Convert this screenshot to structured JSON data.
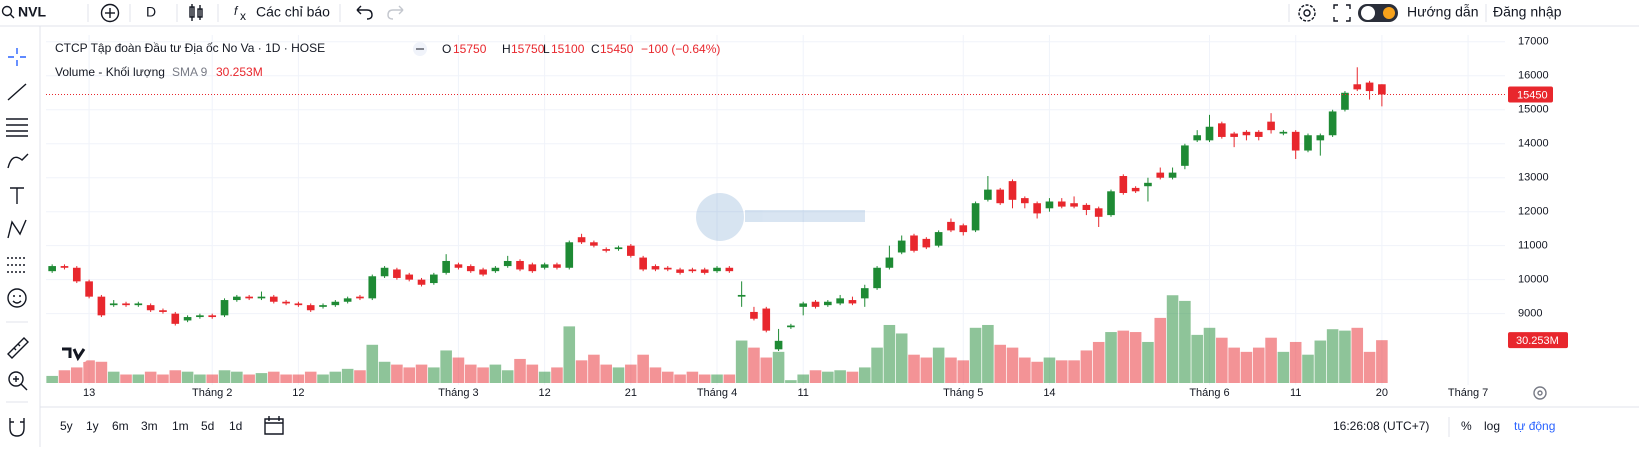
{
  "toolbar": {
    "symbol": "NVL",
    "interval": "D",
    "indicators": "Các chỉ báo",
    "guide": "Hướng dẫn",
    "login": "Đăng nhập"
  },
  "chart_data": {
    "type": "candlestick",
    "title": "CTCP Tập đoàn Đầu tư Địa ốc No Va · 1D · HOSE",
    "legend": {
      "open_label": "O",
      "high_label": "H",
      "low_label": "L",
      "close_label": "C",
      "change": "−100 (−0.64%)"
    },
    "volume_legend": {
      "name": "Volume - Khối lượng",
      "indicator": "SMA 9"
    },
    "categories": [
      null,
      null,
      null,
      "13",
      null,
      null,
      null,
      null,
      null,
      null,
      null,
      null,
      null,
      "Tháng 2",
      null,
      null,
      null,
      null,
      null,
      null,
      "12",
      null,
      null,
      null,
      null,
      null,
      null,
      null,
      null,
      null,
      null,
      null,
      null,
      "Tháng 3",
      null,
      null,
      null,
      null,
      null,
      null,
      "12",
      null,
      null,
      null,
      null,
      null,
      null,
      "21",
      null,
      null,
      null,
      null,
      null,
      null,
      "Tháng 4",
      null,
      null,
      null,
      null,
      null,
      null,
      "11",
      null,
      null,
      null,
      null,
      null,
      null,
      null,
      null,
      null,
      null,
      null,
      null,
      "Tháng 5",
      null,
      null,
      null,
      null,
      null,
      null,
      "14",
      null,
      null,
      null,
      null,
      null,
      null,
      null,
      null,
      null,
      null,
      null,
      null,
      "Tháng 6",
      null,
      null,
      null,
      null,
      null,
      null,
      "11",
      null,
      null,
      null,
      null,
      null,
      null,
      "20"
    ],
    "xlim": [
      -0.5,
      118
    ],
    "xticks_after": [
      {
        "value": 115,
        "label": "Tháng 7"
      }
    ],
    "open": [
      10250,
      10400,
      10350,
      9950,
      9500,
      9250,
      9300,
      9250,
      9250,
      9100,
      9000,
      8800,
      8900,
      8950,
      8950,
      9400,
      9500,
      9450,
      9500,
      9350,
      9300,
      9250,
      9200,
      9250,
      9350,
      9500,
      9450,
      10100,
      10300,
      10150,
      10000,
      9900,
      10200,
      10450,
      10400,
      10300,
      10250,
      10400,
      10550,
      10450,
      10350,
      10450,
      10350,
      11250,
      11100,
      10900,
      10900,
      11000,
      10650,
      10400,
      10350,
      10300,
      10300,
      10300,
      10250,
      10350,
      9500,
      9050,
      9150,
      7950,
      8600,
      9200,
      9350,
      9250,
      9300,
      9400,
      9450,
      9750,
      10350,
      10800,
      11300,
      11200,
      11000,
      11700,
      11600,
      11450,
      12350,
      12650,
      12900,
      12400,
      12250,
      12100,
      12300,
      12250,
      12200,
      12100,
      11900,
      13050,
      12700,
      12750,
      13150,
      13000,
      13350,
      14100,
      14100,
      14600,
      14300,
      14350,
      14350,
      14650,
      14300,
      14350,
      13800,
      14100,
      14250,
      15000,
      15750,
      15800,
      15750
    ],
    "high": [
      10450,
      10450,
      10400,
      10000,
      9550,
      9400,
      9350,
      9350,
      9300,
      9150,
      9050,
      8950,
      9000,
      9000,
      9450,
      9550,
      9550,
      9650,
      9550,
      9400,
      9350,
      9300,
      9300,
      9400,
      9500,
      9550,
      10150,
      10400,
      10350,
      10200,
      10050,
      10200,
      10750,
      10500,
      10450,
      10350,
      10400,
      10700,
      10600,
      10500,
      10500,
      10500,
      11150,
      11350,
      11150,
      10950,
      11000,
      11050,
      10700,
      10450,
      10400,
      10350,
      10350,
      10350,
      10400,
      10400,
      9950,
      9200,
      9200,
      8550,
      8700,
      9350,
      9400,
      9400,
      9550,
      9500,
      9850,
      10400,
      11000,
      11300,
      11350,
      11250,
      11450,
      11800,
      11650,
      12300,
      13050,
      12700,
      12950,
      12450,
      12300,
      12400,
      12400,
      12450,
      12250,
      12150,
      12650,
      13100,
      12750,
      13000,
      13300,
      13300,
      14000,
      14400,
      14850,
      14650,
      14350,
      14400,
      14400,
      14900,
      14400,
      14400,
      14300,
      14300,
      15000,
      15550,
      16250,
      15850,
      15750
    ],
    "low": [
      10200,
      10300,
      9900,
      9450,
      8900,
      9200,
      9200,
      9200,
      9050,
      9000,
      8650,
      8750,
      8850,
      8850,
      8900,
      9350,
      9400,
      9400,
      9300,
      9250,
      9200,
      9050,
      9150,
      9200,
      9300,
      9400,
      9400,
      10050,
      10000,
      9950,
      9800,
      9850,
      10150,
      10300,
      10200,
      10100,
      10200,
      10350,
      10250,
      10200,
      10300,
      10300,
      10300,
      11050,
      10950,
      10800,
      10850,
      10650,
      10250,
      10250,
      10250,
      10150,
      10200,
      10150,
      10200,
      10200,
      9200,
      8800,
      8450,
      7900,
      8550,
      8950,
      9150,
      9200,
      9250,
      9250,
      9200,
      9700,
      10300,
      10750,
      10800,
      10900,
      10950,
      11400,
      11300,
      11400,
      12300,
      12200,
      12100,
      12100,
      11800,
      12000,
      12100,
      12100,
      11900,
      11550,
      11850,
      12500,
      12550,
      12300,
      12950,
      12950,
      13250,
      14050,
      14050,
      14150,
      13900,
      14100,
      14100,
      14300,
      14250,
      13550,
      13750,
      13650,
      14200,
      14950,
      15550,
      15300,
      15100
    ],
    "close": [
      10400,
      10350,
      9950,
      9500,
      8950,
      9300,
      9250,
      9300,
      9100,
      9050,
      8700,
      8900,
      8950,
      8900,
      9400,
      9500,
      9450,
      9500,
      9350,
      9300,
      9250,
      9100,
      9250,
      9350,
      9450,
      9450,
      10100,
      10350,
      10050,
      10000,
      9850,
      10150,
      10550,
      10350,
      10250,
      10150,
      10350,
      10550,
      10300,
      10250,
      10450,
      10350,
      11100,
      11100,
      11000,
      10850,
      10950,
      10700,
      10300,
      10300,
      10300,
      10200,
      10250,
      10200,
      10350,
      10250,
      9550,
      8850,
      8500,
      8200,
      8650,
      9300,
      9200,
      9350,
      9450,
      9300,
      9750,
      10350,
      10650,
      11150,
      10850,
      10950,
      11400,
      11450,
      11400,
      12250,
      12650,
      12250,
      12350,
      12250,
      11950,
      12300,
      12150,
      12150,
      12050,
      11850,
      12600,
      12550,
      12600,
      12850,
      13000,
      13150,
      13950,
      14250,
      14500,
      14200,
      14200,
      14250,
      14200,
      14400,
      14350,
      13800,
      14250,
      14250,
      14950,
      15500,
      15600,
      15550,
      15450
    ],
    "volume": [
      5,
      9,
      11,
      16,
      15,
      8,
      6,
      6,
      8,
      6,
      9,
      8,
      6,
      6,
      9,
      8,
      6,
      7,
      8,
      6,
      6,
      8,
      6,
      8,
      10,
      9,
      27,
      15,
      13,
      11,
      13,
      11,
      23,
      18,
      13,
      11,
      13,
      9,
      17,
      13,
      8,
      11,
      40,
      16,
      20,
      13,
      11,
      13,
      20,
      11,
      8,
      6,
      8,
      6,
      6,
      6,
      30,
      25,
      18,
      22,
      2,
      6,
      9,
      8,
      9,
      8,
      11,
      25,
      41,
      35,
      20,
      18,
      25,
      18,
      16,
      39,
      41,
      27,
      25,
      18,
      15,
      18,
      16,
      16,
      23,
      29,
      36,
      37,
      36,
      29,
      46,
      62,
      58,
      34,
      39,
      32,
      25,
      22,
      25,
      32,
      22,
      29,
      20,
      30,
      38,
      37,
      39,
      22,
      30.253
    ],
    "volume_value_label": "30.253M",
    "up_color": "#1e8a34",
    "down_color": "#e8272d",
    "ylim": [
      6900,
      17200
    ],
    "yticks": [
      9000,
      10000,
      11000,
      12000,
      13000,
      14000,
      15000,
      16000,
      17000
    ],
    "y2lim": [
      0,
      65
    ],
    "grid": true
  },
  "bottom_bar": {
    "ranges": [
      "5y",
      "1y",
      "6m",
      "3m",
      "1m",
      "5d",
      "1d"
    ],
    "time": "16:26:08 (UTC+7)",
    "percent": "%",
    "log": "log",
    "auto": "tự động"
  }
}
